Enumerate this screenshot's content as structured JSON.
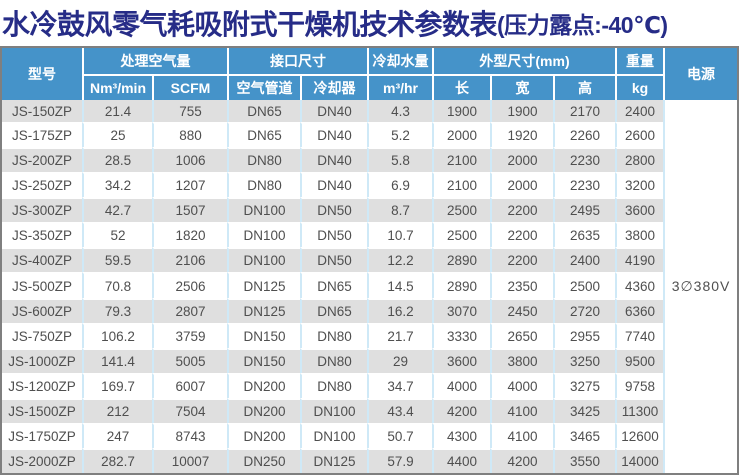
{
  "title": {
    "main": "水冷鼓风零气耗吸附式干燥机技术参数表",
    "suffix": "(压力露点:-40℃)"
  },
  "colors": {
    "title_text": "#262c87",
    "header_bg": "#4593c9",
    "header_text": "#ffffff",
    "row_alt_bg": "#dfdfdf",
    "row_bg": "#ffffff",
    "grid_line": "#cfe9f7",
    "outer_border": "#7f7f7f",
    "data_text": "#4f4f4f"
  },
  "table": {
    "header": {
      "model": "型号",
      "air_group": "处理空气量",
      "air_sub": [
        "Nm³/min",
        "SCFM"
      ],
      "port_group": "接口尺寸",
      "port_sub": [
        "空气管道",
        "冷却器"
      ],
      "water_group": "冷却水量",
      "water_sub": "m³/hr",
      "dims_group": "外型尺寸(mm)",
      "dims_sub": [
        "长",
        "宽",
        "高"
      ],
      "weight_group": "重量",
      "weight_sub": "kg",
      "power": "电源"
    },
    "rows": [
      [
        "JS-150ZP",
        "21.4",
        "755",
        "DN65",
        "DN40",
        "4.3",
        "1900",
        "1900",
        "2170",
        "2400"
      ],
      [
        "JS-175ZP",
        "25",
        "880",
        "DN65",
        "DN40",
        "5.2",
        "2000",
        "1920",
        "2260",
        "2600"
      ],
      [
        "JS-200ZP",
        "28.5",
        "1006",
        "DN80",
        "DN40",
        "5.8",
        "2100",
        "2000",
        "2230",
        "2800"
      ],
      [
        "JS-250ZP",
        "34.2",
        "1207",
        "DN80",
        "DN40",
        "6.9",
        "2100",
        "2000",
        "2230",
        "3200"
      ],
      [
        "JS-300ZP",
        "42.7",
        "1507",
        "DN100",
        "DN50",
        "8.7",
        "2500",
        "2200",
        "2495",
        "3600"
      ],
      [
        "JS-350ZP",
        "52",
        "1820",
        "DN100",
        "DN50",
        "10.7",
        "2500",
        "2200",
        "2635",
        "3800"
      ],
      [
        "JS-400ZP",
        "59.5",
        "2106",
        "DN100",
        "DN50",
        "12.2",
        "2890",
        "2200",
        "2400",
        "4190"
      ],
      [
        "JS-500ZP",
        "70.8",
        "2506",
        "DN125",
        "DN65",
        "14.5",
        "2890",
        "2350",
        "2500",
        "4360"
      ],
      [
        "JS-600ZP",
        "79.3",
        "2807",
        "DN125",
        "DN65",
        "16.2",
        "3070",
        "2450",
        "2720",
        "6360"
      ],
      [
        "JS-750ZP",
        "106.2",
        "3759",
        "DN150",
        "DN80",
        "21.7",
        "3330",
        "2650",
        "2955",
        "7740"
      ],
      [
        "JS-1000ZP",
        "141.4",
        "5005",
        "DN150",
        "DN80",
        "29",
        "3600",
        "3800",
        "3250",
        "9500"
      ],
      [
        "JS-1200ZP",
        "169.7",
        "6007",
        "DN200",
        "DN80",
        "34.7",
        "4000",
        "4000",
        "3275",
        "9758"
      ],
      [
        "JS-1500ZP",
        "212",
        "7504",
        "DN200",
        "DN100",
        "43.4",
        "4200",
        "4100",
        "3425",
        "11300"
      ],
      [
        "JS-1750ZP",
        "247",
        "8743",
        "DN200",
        "DN100",
        "50.7",
        "4300",
        "4100",
        "3465",
        "12600"
      ],
      [
        "JS-2000ZP",
        "282.7",
        "10007",
        "DN250",
        "DN125",
        "57.9",
        "4400",
        "4200",
        "3550",
        "14000"
      ]
    ],
    "power_value": "3∅380V"
  }
}
